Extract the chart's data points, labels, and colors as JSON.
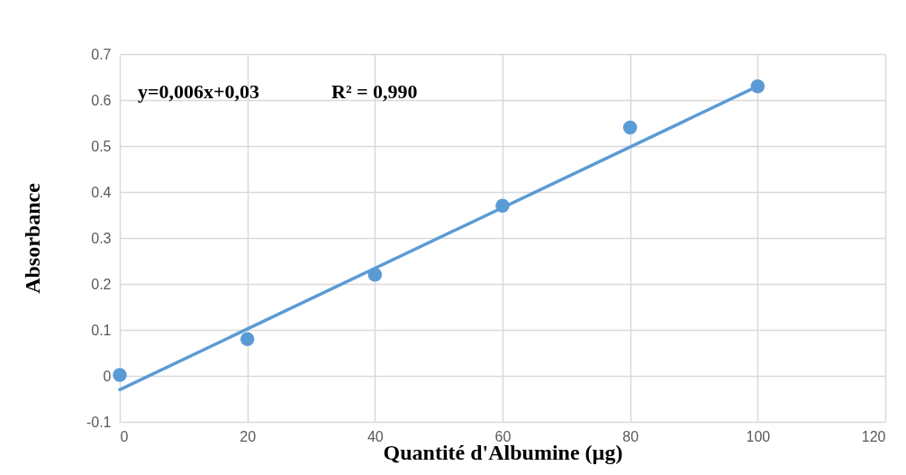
{
  "chart_data": {
    "type": "scatter",
    "xlabel": "Quantité d'Albumine (µg)",
    "ylabel": "Absorbance",
    "annotations": [
      "y=0,006x+0,03",
      "R² = 0,990"
    ],
    "xlim": [
      0,
      120
    ],
    "xticks": [
      0,
      20,
      40,
      60,
      80,
      100,
      120
    ],
    "ylim": [
      -0.1,
      0.7
    ],
    "yticks": [
      -0.1,
      0,
      0.1,
      0.2,
      0.3,
      0.4,
      0.5,
      0.6,
      0.7
    ],
    "grid": true,
    "marker": "circle",
    "series": [
      {
        "color": "#5b9bd5",
        "x": [
          0,
          20,
          40,
          60,
          80,
          100
        ],
        "values": [
          0.002,
          0.08,
          0.22,
          0.37,
          0.54,
          0.63
        ]
      },
      {
        "type": "line",
        "marker": "none",
        "color": "#5b9bd5",
        "x": [
          0,
          100
        ],
        "values": [
          -0.03,
          0.63
        ]
      }
    ]
  }
}
